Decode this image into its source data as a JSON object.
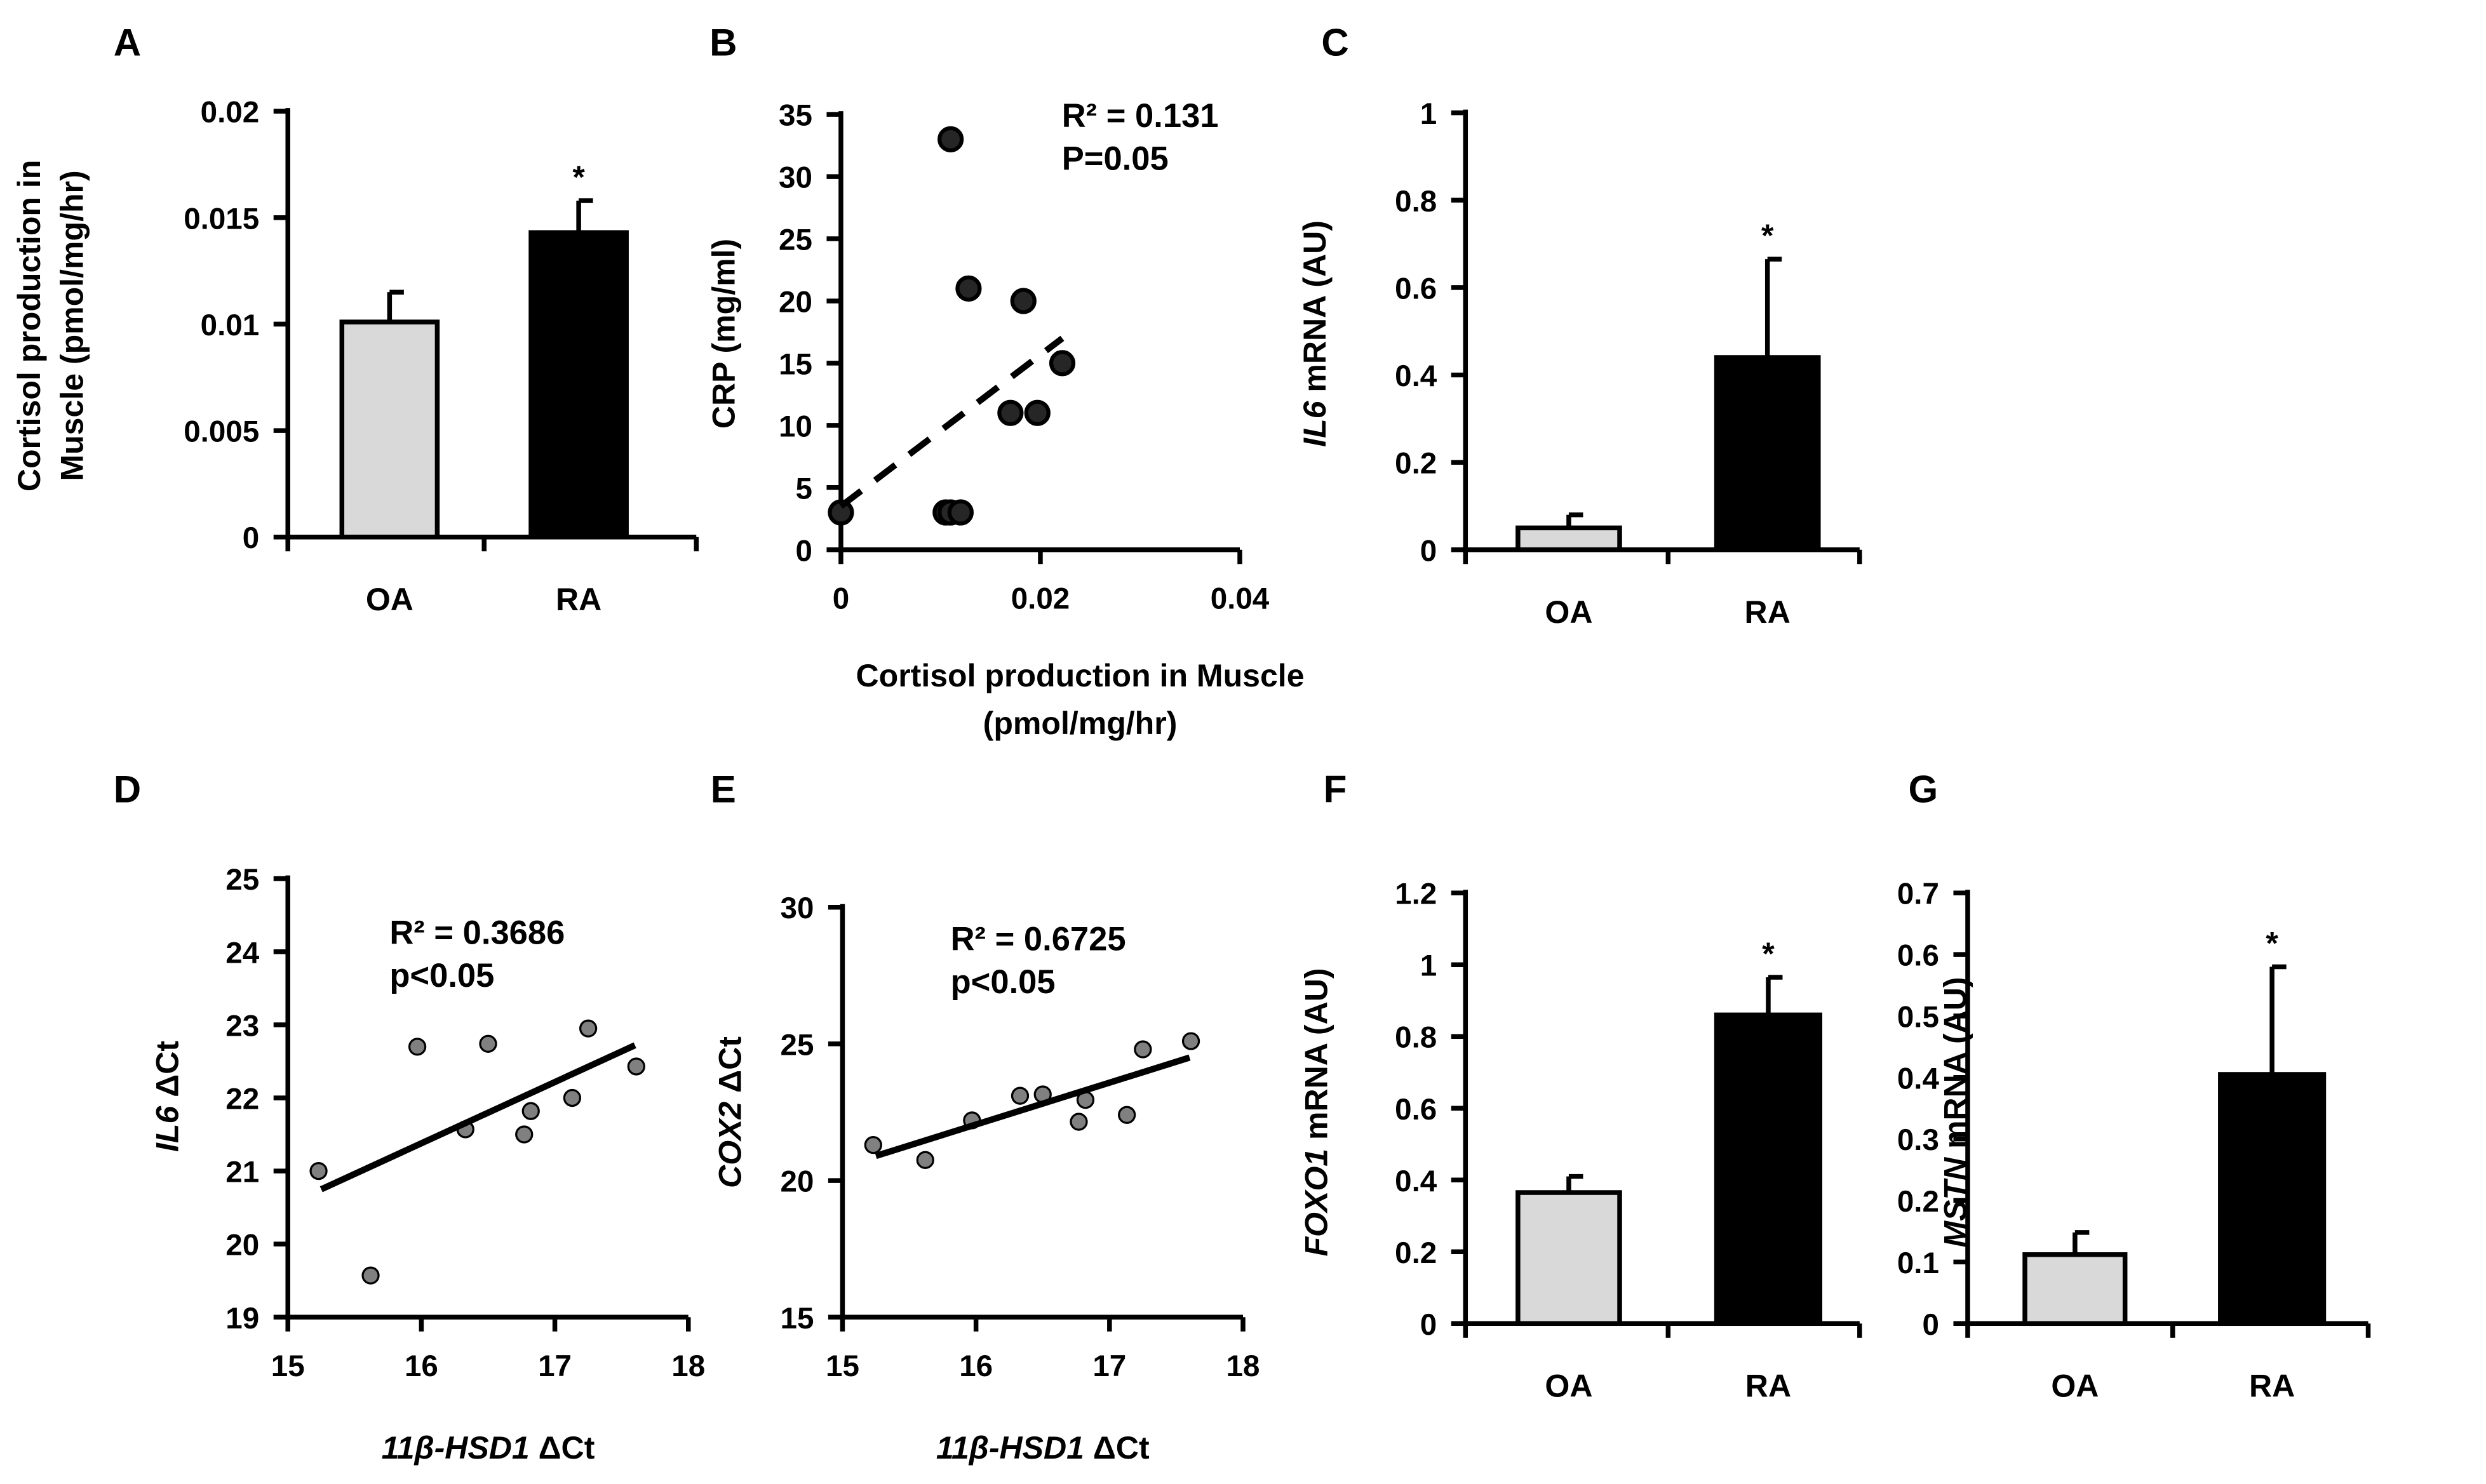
{
  "chart_data": [
    {
      "panel": "A",
      "type": "bar",
      "categories": [
        "OA",
        "RA"
      ],
      "values": [
        0.0101,
        0.0143
      ],
      "errors": [
        0.0115,
        0.0158
      ],
      "colors": [
        "#d9d9d9",
        "#000000"
      ],
      "significance": [
        "",
        "*"
      ],
      "ylabel_lines": [
        "Cortisol production in",
        "Muscle (pmol/mg/hr)"
      ],
      "ylim": [
        0,
        0.02
      ],
      "yticks": [
        "0",
        "0.005",
        "0.01",
        "0.015",
        "0.02"
      ]
    },
    {
      "panel": "B",
      "type": "scatter",
      "x": [
        0,
        0.0105,
        0.011,
        0.012,
        0.011,
        0.0128,
        0.0183,
        0.017,
        0.0197,
        0.0222
      ],
      "y": [
        3,
        3,
        3,
        3,
        33,
        21,
        20,
        11,
        11,
        15
      ],
      "trend": [
        [
          0,
          3.5
        ],
        [
          0.0222,
          17
        ]
      ],
      "trend_style": "dashed",
      "annotation": [
        "R² = 0.131",
        "P=0.05"
      ],
      "ylabel": "CRP (mg/ml)",
      "xlabel_lines": [
        "Cortisol production in Muscle",
        "(pmol/mg/hr)"
      ],
      "xlim": [
        0,
        0.04
      ],
      "ylim": [
        0,
        35
      ],
      "xticks": [
        "0",
        "0.02",
        "0.04"
      ],
      "yticks": [
        "0",
        "5",
        "10",
        "15",
        "20",
        "25",
        "30",
        "35"
      ]
    },
    {
      "panel": "C",
      "type": "bar",
      "categories": [
        "OA",
        "RA"
      ],
      "values": [
        0.05,
        0.44
      ],
      "errors": [
        0.08,
        0.665
      ],
      "colors": [
        "#d9d9d9",
        "#000000"
      ],
      "significance": [
        "",
        "*"
      ],
      "ylabel_italic": "IL6",
      "ylabel_rest": " mRNA (AU)",
      "ylim": [
        0,
        1
      ],
      "yticks": [
        "0",
        "0.2",
        "0.4",
        "0.6",
        "0.8",
        "1"
      ]
    },
    {
      "panel": "D",
      "type": "scatter",
      "x": [
        15.23,
        15.62,
        15.97,
        16.33,
        16.5,
        16.77,
        16.82,
        17.13,
        17.25,
        17.61
      ],
      "y": [
        21.0,
        19.57,
        22.7,
        21.57,
        22.74,
        21.5,
        21.82,
        22.0,
        22.95,
        22.43
      ],
      "trend": [
        [
          15.25,
          20.75
        ],
        [
          17.6,
          22.72
        ]
      ],
      "trend_style": "solid",
      "annotation": [
        "R² = 0.3686",
        "p<0.05"
      ],
      "ylabel_italic": "IL6",
      "ylabel_rest": " ΔCt",
      "xlabel_italic": "11β-HSD1",
      "xlabel_rest": " ΔCt",
      "xlim": [
        15,
        18
      ],
      "ylim": [
        19,
        25
      ],
      "xticks": [
        "15",
        "16",
        "17",
        "18"
      ],
      "yticks": [
        "19",
        "20",
        "21",
        "22",
        "23",
        "24",
        "25"
      ]
    },
    {
      "panel": "E",
      "type": "scatter",
      "x": [
        15.23,
        15.62,
        15.97,
        16.33,
        16.5,
        16.77,
        16.82,
        17.13,
        17.25,
        17.61
      ],
      "y": [
        21.3,
        20.75,
        22.2,
        23.1,
        23.15,
        22.15,
        22.95,
        22.4,
        24.8,
        25.1
      ],
      "trend": [
        [
          15.25,
          20.9
        ],
        [
          17.6,
          24.5
        ]
      ],
      "trend_style": "solid",
      "annotation": [
        "R² = 0.6725",
        "p<0.05"
      ],
      "ylabel_italic": "COX2",
      "ylabel_rest": " ΔCt",
      "xlabel_italic": "11β-HSD1",
      "xlabel_rest": " ΔCt",
      "xlim": [
        15,
        18
      ],
      "ylim": [
        15,
        30
      ],
      "xticks": [
        "15",
        "16",
        "17",
        "18"
      ],
      "yticks": [
        "15",
        "20",
        "25",
        "30"
      ]
    },
    {
      "panel": "F",
      "type": "bar",
      "categories": [
        "OA",
        "RA"
      ],
      "values": [
        0.365,
        0.86
      ],
      "errors": [
        0.41,
        0.965
      ],
      "colors": [
        "#d9d9d9",
        "#000000"
      ],
      "significance": [
        "",
        "*"
      ],
      "ylabel_italic": "FOXO1",
      "ylabel_rest": " mRNA (AU)",
      "ylim": [
        0,
        1.2
      ],
      "yticks": [
        "0",
        "0.2",
        "0.4",
        "0.6",
        "0.8",
        "1",
        "1.2"
      ]
    },
    {
      "panel": "G",
      "type": "bar",
      "categories": [
        "OA",
        "RA"
      ],
      "values": [
        0.112,
        0.405
      ],
      "errors": [
        0.148,
        0.58
      ],
      "colors": [
        "#d9d9d9",
        "#000000"
      ],
      "significance": [
        "",
        "*"
      ],
      "ylabel_italic": "MSTN",
      "ylabel_rest": " mRNA (AU)",
      "ylim": [
        0,
        0.7
      ],
      "yticks": [
        "0",
        "0.1",
        "0.2",
        "0.3",
        "0.4",
        "0.5",
        "0.6",
        "0.7"
      ]
    }
  ]
}
